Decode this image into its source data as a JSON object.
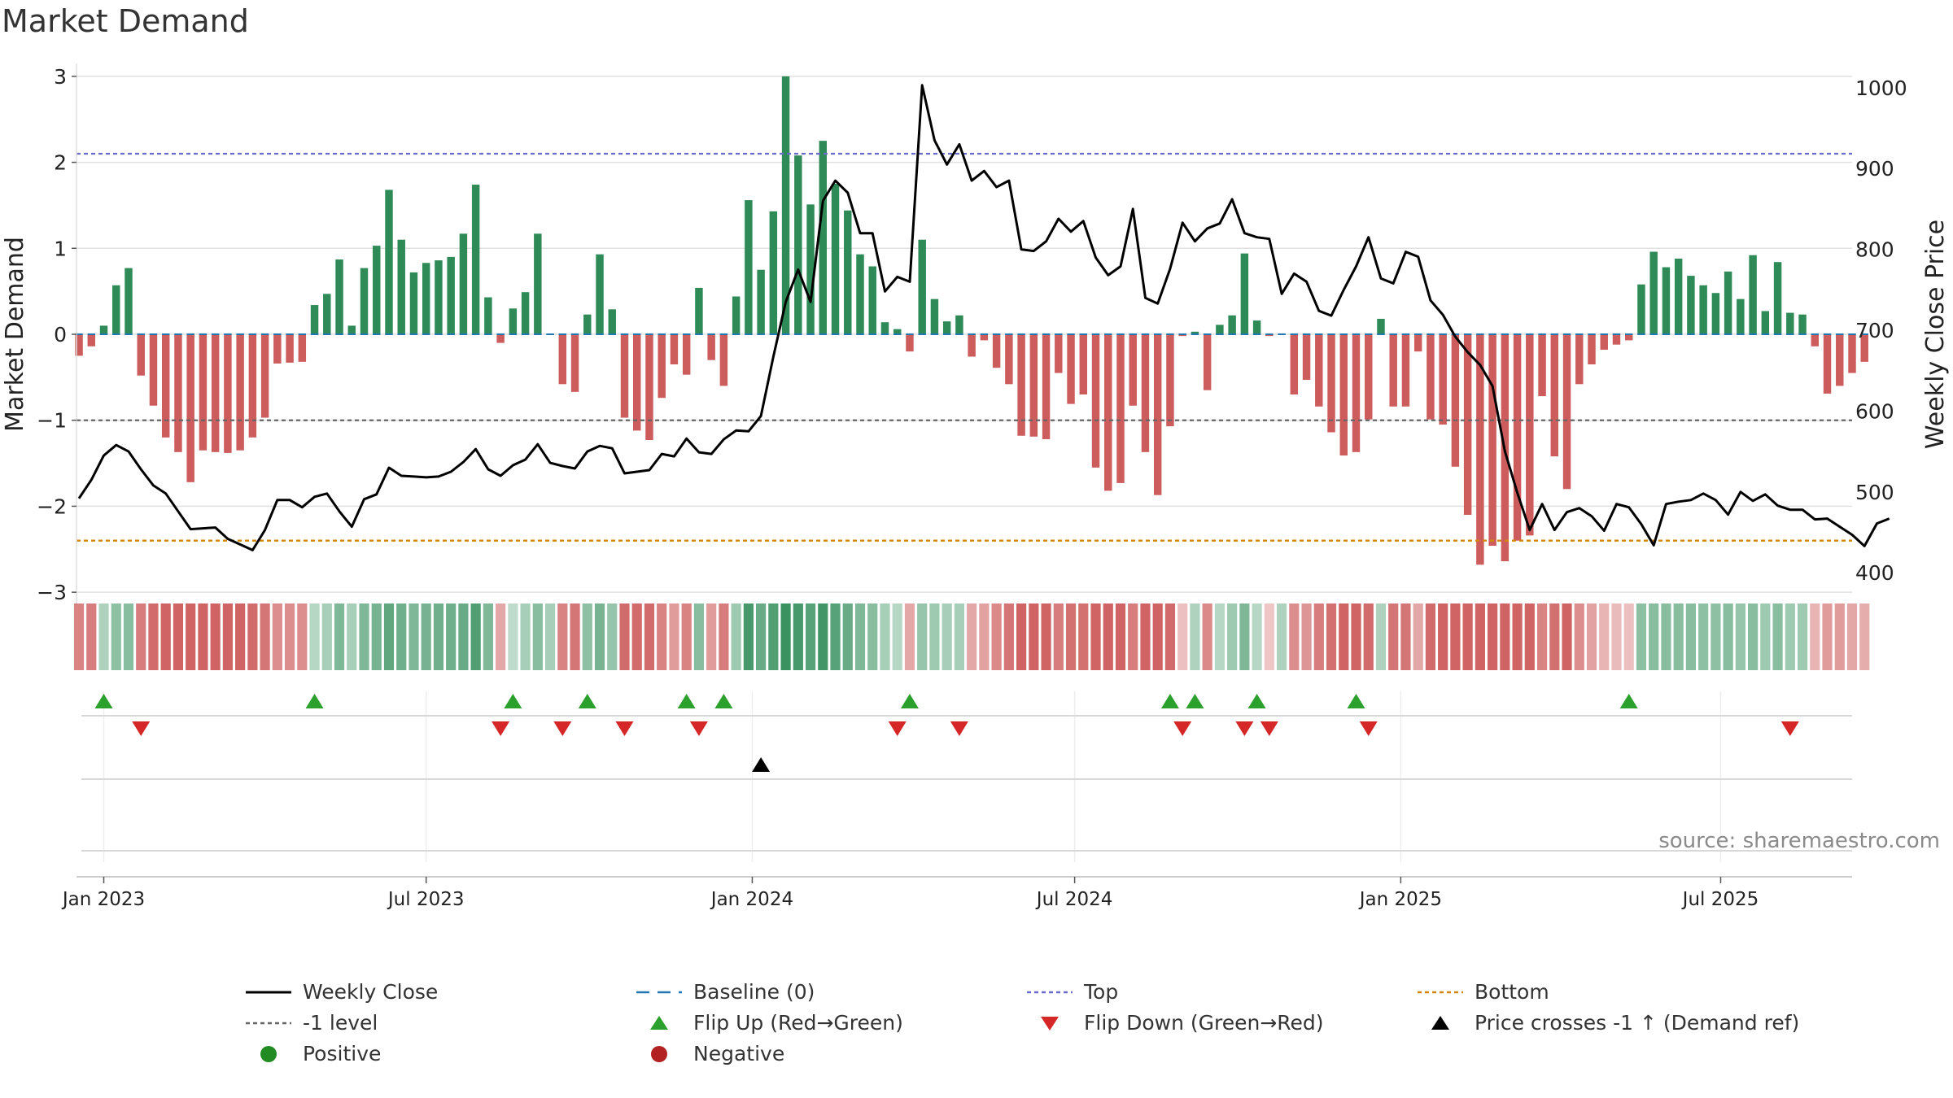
{
  "title": "Market Demand",
  "source": "source: sharemaestro.com",
  "colors": {
    "positive": "#2e8b57",
    "negative": "#cd5c5c",
    "close": "#000000",
    "baseline": "#1f77b4",
    "top": "#6a6acd",
    "minus1": "#666666",
    "bottom": "#d4860b",
    "flip_up": "#2ca02c",
    "flip_down": "#d62728",
    "cross": "#000000",
    "grid": "#e0e0e0"
  },
  "legend": [
    {
      "label": "Weekly Close",
      "symbol": "line-black"
    },
    {
      "label": "Baseline (0)",
      "symbol": "dash-blue"
    },
    {
      "label": "Top",
      "symbol": "dot-purple"
    },
    {
      "label": "Bottom",
      "symbol": "dot-orange"
    },
    {
      "label": "-1 level",
      "symbol": "dot-gray"
    },
    {
      "label": "Flip Up (Red→Green)",
      "symbol": "triangle-up-green"
    },
    {
      "label": "Flip Down (Green→Red)",
      "symbol": "triangle-down-red"
    },
    {
      "label": "Price crosses -1 ↑ (Demand ref)",
      "symbol": "triangle-up-black"
    },
    {
      "label": "Positive",
      "symbol": "circle-green"
    },
    {
      "label": "Negative",
      "symbol": "circle-red"
    }
  ],
  "chart_data": {
    "type": "bar",
    "title": "Market Demand",
    "ylabel": "Market Demand",
    "y2label": "Weekly Close Price",
    "ylim": [
      -3.15,
      3.15
    ],
    "y2lim": [
      360,
      1030
    ],
    "yticks": [
      3,
      2,
      1,
      0,
      -1,
      -2,
      -3
    ],
    "yticklabels": [
      "3",
      "2",
      "1",
      "0",
      "−1",
      "−2",
      "−3"
    ],
    "y2ticks": [
      1000,
      900,
      800,
      700,
      600,
      500,
      400
    ],
    "y2ticklabels": [
      "1000",
      "900",
      "800",
      "700",
      "600",
      "500",
      "400"
    ],
    "xlim_weeks": [
      -2.2,
      141
    ],
    "xticks": [
      {
        "week": 0,
        "label": "Jan 2023"
      },
      {
        "week": 26,
        "label": "Jul 2023"
      },
      {
        "week": 52.3,
        "label": "Jan 2024"
      },
      {
        "week": 78.3,
        "label": "Jul 2024"
      },
      {
        "week": 104.6,
        "label": "Jan 2025"
      },
      {
        "week": 130.4,
        "label": "Jul 2025"
      }
    ],
    "reference_lines": {
      "top": 2.1,
      "minus1": -1,
      "bottom": -2.4,
      "baseline": 0
    },
    "series": [
      {
        "name": "Market Demand",
        "start_week": -2,
        "values": [
          -0.25,
          -0.14,
          0.1,
          0.57,
          0.77,
          -0.48,
          -0.83,
          -1.2,
          -1.37,
          -1.72,
          -1.35,
          -1.37,
          -1.38,
          -1.35,
          -1.2,
          -0.97,
          -0.34,
          -0.33,
          -0.32,
          0.34,
          0.47,
          0.87,
          0.1,
          0.77,
          1.03,
          1.68,
          1.1,
          0.72,
          0.83,
          0.86,
          0.9,
          1.17,
          1.74,
          0.43,
          -0.1,
          0.3,
          0.49,
          1.17,
          0,
          -0.58,
          -0.67,
          0.23,
          0.93,
          0.29,
          -0.97,
          -1.12,
          -1.23,
          -0.74,
          -0.35,
          -0.47,
          0.54,
          -0.3,
          -0.6,
          0.44,
          1.56,
          0.75,
          1.43,
          3,
          2.08,
          1.51,
          2.25,
          1.75,
          1.44,
          0.93,
          0.79,
          0.14,
          0.06,
          -0.2,
          1.1,
          0.41,
          0.15,
          0.22,
          -0.26,
          -0.07,
          -0.39,
          -0.58,
          -1.18,
          -1.19,
          -1.22,
          -0.45,
          -0.81,
          -0.7,
          -1.55,
          -1.82,
          -1.73,
          -0.83,
          -1.37,
          -1.87,
          -1.07,
          -0.02,
          0.03,
          -0.65,
          0.11,
          0.22,
          0.94,
          0.16,
          -0.02,
          0,
          -0.7,
          -0.53,
          -0.84,
          -1.14,
          -1.41,
          -1.37,
          -0.99,
          0.18,
          -0.84,
          -0.84,
          -0.2,
          -0.99,
          -1.05,
          -1.54,
          -2.1,
          -2.68,
          -2.46,
          -2.64,
          -2.4,
          -2.34,
          -0.72,
          -1.42,
          -1.8,
          -0.58,
          -0.35,
          -0.18,
          -0.12,
          -0.07,
          0.58,
          0.96,
          0.78,
          0.88,
          0.68,
          0.57,
          0.48,
          0.73,
          0.41,
          0.92,
          0.27,
          0.84,
          0.25,
          0.23,
          -0.14,
          -0.69,
          -0.6,
          -0.45,
          -0.32
        ]
      },
      {
        "name": "Weekly Close",
        "axis": "right",
        "start_week": -2,
        "values": [
          492,
          515,
          545,
          558,
          550,
          528,
          508,
          498,
          476,
          454,
          455,
          456,
          442,
          435,
          428,
          453,
          490,
          490,
          481,
          494,
          498,
          476,
          457,
          491,
          497,
          530,
          520,
          519,
          518,
          519,
          525,
          537,
          553,
          528,
          520,
          533,
          540,
          559,
          536,
          532,
          529,
          550,
          557,
          554,
          523,
          525,
          527,
          547,
          544,
          566,
          549,
          547,
          565,
          576,
          575,
          594,
          667,
          735,
          775,
          735,
          860,
          885,
          870,
          820,
          820,
          748,
          766,
          760,
          1003,
          935,
          905,
          930,
          885,
          897,
          877,
          885,
          800,
          798,
          810,
          838,
          822,
          835,
          790,
          768,
          779,
          850,
          740,
          733,
          776,
          833,
          810,
          826,
          832,
          862,
          820,
          815,
          813,
          745,
          770,
          760,
          724,
          718,
          750,
          779,
          815,
          764,
          758,
          797,
          791,
          737,
          719,
          692,
          673,
          657,
          631,
          550,
          499,
          453,
          485,
          453,
          475,
          480,
          470,
          452,
          485,
          481,
          460,
          434,
          485,
          488,
          490,
          498,
          490,
          472,
          500,
          489,
          497,
          483,
          478,
          478,
          466,
          467,
          457,
          447,
          433,
          461,
          467
        ]
      }
    ],
    "color_strip_steps": [
      0.75,
      0.8,
      0.25,
      0.45,
      0.5,
      0.8,
      0.95,
      1,
      1,
      1,
      1,
      1,
      1,
      1,
      0.95,
      0.85,
      0.65,
      0.65,
      0.65,
      0.2,
      0.3,
      0.55,
      0.3,
      0.55,
      0.6,
      0.75,
      0.65,
      0.55,
      0.6,
      0.65,
      0.65,
      0.7,
      0.85,
      0.55,
      0.45,
      0.15,
      0.3,
      0.5,
      0.3,
      0.75,
      0.85,
      0.45,
      0.6,
      0.4,
      0.95,
      0.95,
      0.95,
      0.75,
      0.55,
      0.75,
      0.5,
      0.55,
      0.8,
      0.35,
      0.9,
      0.7,
      0.85,
      0.98,
      0.9,
      0.8,
      0.95,
      0.8,
      0.7,
      0.55,
      0.5,
      0.3,
      0.2,
      0.45,
      0.4,
      0.35,
      0.3,
      0.3,
      0.45,
      0.5,
      0.7,
      0.85,
      1,
      1,
      1,
      0.8,
      0.9,
      0.9,
      1,
      1,
      1,
      0.8,
      1,
      1,
      0.95,
      0.25,
      0.25,
      0.7,
      0.2,
      0.35,
      0.55,
      0.2,
      0.2,
      0.25,
      0.65,
      0.6,
      0.8,
      0.9,
      1,
      1,
      0.95,
      0.25,
      0.85,
      0.85,
      0.45,
      0.95,
      1,
      1,
      1,
      1,
      1,
      1,
      1,
      1,
      0.75,
      0.9,
      1,
      0.65,
      0.5,
      0.35,
      0.3,
      0.25,
      0.45,
      0.5,
      0.5,
      0.5,
      0.5,
      0.45,
      0.45,
      0.5,
      0.4,
      0.5,
      0.35,
      0.5,
      0.35,
      0.35,
      0.35,
      0.55,
      0.55,
      0.45,
      0.4
    ],
    "flip_up_weeks": [
      0,
      17,
      33,
      39,
      47,
      50,
      65,
      86,
      88,
      93,
      101,
      123
    ],
    "flip_down_weeks": [
      3,
      32,
      37,
      42,
      48,
      64,
      69,
      87,
      92,
      94,
      102,
      136
    ],
    "price_cross_weeks": [
      53
    ]
  }
}
